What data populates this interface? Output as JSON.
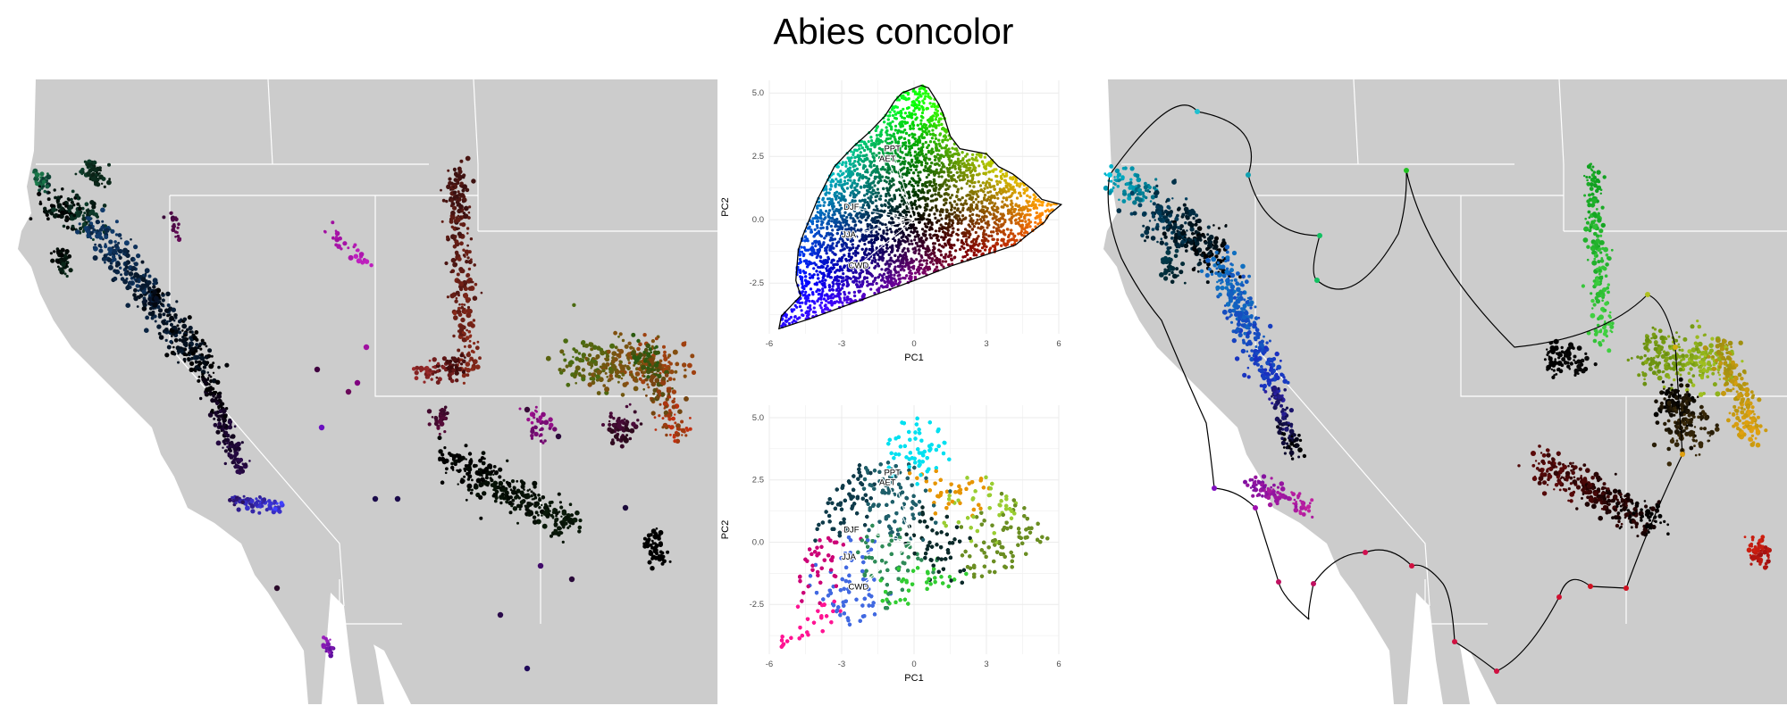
{
  "title": "Abies concolor",
  "colors": {
    "land": "#cccccc",
    "borders": "#ffffff",
    "hull": "#000000",
    "grid": "#ebebeb"
  },
  "chart_data": [
    {
      "type": "scatter",
      "panel": "pca-top",
      "xlabel": "PC1",
      "ylabel": "PC2",
      "xlim": [
        -6,
        6
      ],
      "ylim": [
        -4.5,
        5.5
      ],
      "xticks": [
        "-6",
        "-3",
        "0",
        "3",
        "6"
      ],
      "yticks": [
        "-2.5",
        "0.0",
        "2.5",
        "5.0"
      ],
      "grid": true,
      "vectors": [
        {
          "label": "PPT",
          "x": -0.9,
          "y": 2.8
        },
        {
          "label": "AET",
          "x": -1.1,
          "y": 2.4
        },
        {
          "label": "DJF",
          "x": -2.6,
          "y": 0.5
        },
        {
          "label": "JJA",
          "x": -2.7,
          "y": -0.6
        },
        {
          "label": "CWD",
          "x": -2.3,
          "y": -1.8
        }
      ],
      "hull": [
        [
          -5.6,
          -4.3
        ],
        [
          -5.5,
          -3.8
        ],
        [
          -4.7,
          -3.0
        ],
        [
          -4.9,
          -2.4
        ],
        [
          -4.8,
          -1.2
        ],
        [
          -4.6,
          -0.6
        ],
        [
          -4.0,
          0.8
        ],
        [
          -3.3,
          2.1
        ],
        [
          -2.5,
          2.9
        ],
        [
          -1.8,
          3.5
        ],
        [
          -1.2,
          4.1
        ],
        [
          -0.8,
          4.7
        ],
        [
          -0.5,
          5.0
        ],
        [
          0.3,
          5.3
        ],
        [
          0.6,
          5.2
        ],
        [
          1.0,
          4.6
        ],
        [
          1.2,
          4.2
        ],
        [
          1.5,
          3.3
        ],
        [
          1.9,
          2.8
        ],
        [
          3.0,
          2.6
        ],
        [
          3.5,
          2.1
        ],
        [
          4.1,
          1.8
        ],
        [
          4.9,
          1.2
        ],
        [
          5.3,
          0.8
        ],
        [
          6.1,
          0.6
        ],
        [
          5.6,
          0.2
        ],
        [
          5.4,
          -0.1
        ],
        [
          4.7,
          -0.6
        ],
        [
          4.2,
          -1.0
        ],
        [
          2.6,
          -1.5
        ],
        [
          1.6,
          -1.8
        ],
        [
          0.0,
          -2.4
        ],
        [
          -2.0,
          -3.1
        ],
        [
          -4.3,
          -3.9
        ]
      ]
    },
    {
      "type": "scatter",
      "panel": "pca-bottom",
      "xlabel": "PC1",
      "ylabel": "PC2",
      "xlim": [
        -6,
        6
      ],
      "ylim": [
        -4.5,
        5.5
      ],
      "xticks": [
        "-6",
        "-3",
        "0",
        "3",
        "6"
      ],
      "yticks": [
        "-2.5",
        "0.0",
        "2.5",
        "5.0"
      ],
      "grid": true,
      "vectors": [
        {
          "label": "PPT",
          "x": -0.9,
          "y": 2.8
        },
        {
          "label": "AET",
          "x": -1.1,
          "y": 2.4
        },
        {
          "label": "DJF",
          "x": -2.6,
          "y": 0.5
        },
        {
          "label": "JJA",
          "x": -2.7,
          "y": -0.6
        },
        {
          "label": "CWD",
          "x": -2.3,
          "y": -1.8
        }
      ],
      "clusters": [
        {
          "x": -0.2,
          "y": 1.4,
          "color": "#1f5f6a"
        },
        {
          "x": 0.5,
          "y": 4.2,
          "color": "#00e0f0"
        },
        {
          "x": 2.8,
          "y": 1.2,
          "color": "#9acd32"
        },
        {
          "x": 3.5,
          "y": 0.2,
          "color": "#6b8e23"
        },
        {
          "x": 1.8,
          "y": 2.1,
          "color": "#e69500"
        },
        {
          "x": -4.0,
          "y": -0.8,
          "color": "#cc0077"
        },
        {
          "x": -4.7,
          "y": -3.7,
          "color": "#ff1493"
        },
        {
          "x": -2.5,
          "y": -1.5,
          "color": "#4169e1"
        },
        {
          "x": -1.0,
          "y": -1.0,
          "color": "#2e8b57"
        },
        {
          "x": 1.0,
          "y": 0.4,
          "color": "#0b2a2a"
        },
        {
          "x": -3.6,
          "y": 1.5,
          "color": "#0f3b4a"
        },
        {
          "x": 0.0,
          "y": -2.2,
          "color": "#32cd32"
        }
      ]
    }
  ]
}
